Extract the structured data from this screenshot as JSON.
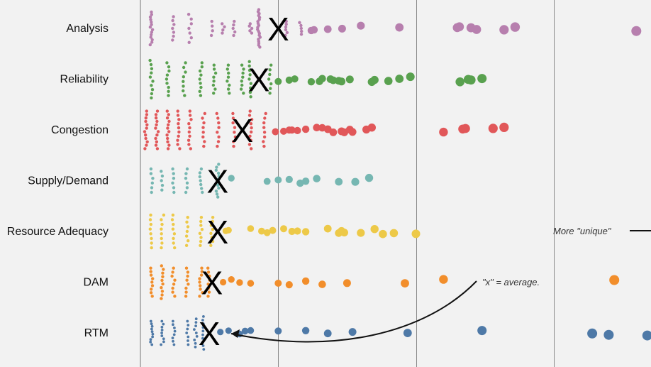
{
  "chart_data": {
    "type": "scatter",
    "style": "strip / beeswarm",
    "categories": [
      "Analysis",
      "Reliability",
      "Congestion",
      "Supply/Demand",
      "Resource Adequacy",
      "DAM",
      "RTM"
    ],
    "colors": {
      "Analysis": "#b77fae",
      "Reliability": "#59a14f",
      "Congestion": "#e15759",
      "Supply/Demand": "#76b7b2",
      "Resource Adequacy": "#edc948",
      "DAM": "#f28e2b",
      "RTM": "#4e79a7"
    },
    "x_axis": {
      "min": 0,
      "max": 1,
      "gridlines": [
        0.25,
        0.5,
        0.75
      ],
      "tick_labels_visible": false
    },
    "average_marker": "X",
    "series": [
      {
        "name": "Analysis",
        "average": 0.25,
        "dense": [
          [
            0.02,
            0.14,
            14
          ],
          [
            0.06,
            0.1,
            7
          ],
          [
            0.09,
            0.12,
            7
          ],
          [
            0.13,
            0.06,
            4
          ],
          [
            0.15,
            0.04,
            4
          ],
          [
            0.17,
            0.06,
            5
          ],
          [
            0.2,
            0.04,
            5
          ],
          [
            0.215,
            0.16,
            20
          ],
          [
            0.265,
            0.06,
            6
          ],
          [
            0.29,
            0.05,
            5
          ]
        ],
        "sparse": [
          [
            0.31,
            1
          ],
          [
            0.315,
            1
          ],
          [
            0.34,
            1
          ],
          [
            0.366,
            1
          ],
          [
            0.4,
            1
          ],
          [
            0.47,
            1
          ],
          [
            0.575,
            1
          ],
          [
            0.579,
            1
          ],
          [
            0.6,
            1
          ],
          [
            0.61,
            1
          ],
          [
            0.66,
            1
          ],
          [
            0.68,
            1
          ],
          [
            0.9,
            1
          ]
        ]
      },
      {
        "name": "Reliability",
        "average": 0.215,
        "dense": [
          [
            0.02,
            0.16,
            10
          ],
          [
            0.05,
            0.14,
            9
          ],
          [
            0.08,
            0.14,
            8
          ],
          [
            0.11,
            0.14,
            9
          ],
          [
            0.135,
            0.12,
            8
          ],
          [
            0.16,
            0.12,
            8
          ],
          [
            0.185,
            0.12,
            8
          ],
          [
            0.2,
            0.15,
            9
          ],
          [
            0.235,
            0.12,
            7
          ]
        ],
        "sparse": [
          [
            0.25,
            1
          ],
          [
            0.27,
            1
          ],
          [
            0.28,
            1
          ],
          [
            0.31,
            1
          ],
          [
            0.325,
            1
          ],
          [
            0.33,
            1
          ],
          [
            0.345,
            1
          ],
          [
            0.35,
            1
          ],
          [
            0.36,
            1
          ],
          [
            0.365,
            1
          ],
          [
            0.38,
            1
          ],
          [
            0.42,
            1
          ],
          [
            0.425,
            1
          ],
          [
            0.45,
            1
          ],
          [
            0.47,
            1
          ],
          [
            0.49,
            1
          ],
          [
            0.58,
            1
          ],
          [
            0.595,
            1
          ],
          [
            0.6,
            1
          ],
          [
            0.62,
            1
          ]
        ]
      },
      {
        "name": "Congestion",
        "average": 0.185,
        "dense": [
          [
            0.01,
            0.16,
            12
          ],
          [
            0.03,
            0.16,
            12
          ],
          [
            0.05,
            0.16,
            12
          ],
          [
            0.07,
            0.16,
            10
          ],
          [
            0.09,
            0.16,
            10
          ],
          [
            0.115,
            0.14,
            8
          ],
          [
            0.14,
            0.14,
            8
          ],
          [
            0.17,
            0.14,
            8
          ],
          [
            0.2,
            0.16,
            10
          ],
          [
            0.225,
            0.14,
            8
          ]
        ],
        "sparse": [
          [
            0.245,
            1
          ],
          [
            0.26,
            1
          ],
          [
            0.27,
            1
          ],
          [
            0.275,
            1
          ],
          [
            0.285,
            1
          ],
          [
            0.3,
            1
          ],
          [
            0.32,
            1
          ],
          [
            0.33,
            1
          ],
          [
            0.34,
            1
          ],
          [
            0.35,
            1
          ],
          [
            0.365,
            1
          ],
          [
            0.37,
            1
          ],
          [
            0.38,
            1
          ],
          [
            0.385,
            1
          ],
          [
            0.41,
            1
          ],
          [
            0.42,
            1
          ],
          [
            0.55,
            1
          ],
          [
            0.585,
            1
          ],
          [
            0.59,
            1
          ],
          [
            0.64,
            1
          ],
          [
            0.66,
            1
          ]
        ]
      },
      {
        "name": "Supply/Demand",
        "average": 0.14,
        "dense": [
          [
            0.02,
            0.1,
            6
          ],
          [
            0.04,
            0.08,
            5
          ],
          [
            0.06,
            0.1,
            6
          ],
          [
            0.085,
            0.1,
            6
          ],
          [
            0.11,
            0.1,
            7
          ],
          [
            0.14,
            0.14,
            12
          ]
        ],
        "sparse": [
          [
            0.165,
            1
          ],
          [
            0.23,
            1
          ],
          [
            0.25,
            1
          ],
          [
            0.27,
            1
          ],
          [
            0.29,
            1
          ],
          [
            0.3,
            1
          ],
          [
            0.32,
            1
          ],
          [
            0.36,
            1
          ],
          [
            0.39,
            1
          ],
          [
            0.415,
            1
          ]
        ]
      },
      {
        "name": "Resource Adequacy",
        "average": 0.14,
        "dense": [
          [
            0.02,
            0.14,
            8
          ],
          [
            0.04,
            0.14,
            8
          ],
          [
            0.06,
            0.14,
            8
          ],
          [
            0.085,
            0.12,
            7
          ],
          [
            0.11,
            0.12,
            8
          ],
          [
            0.13,
            0.12,
            8
          ]
        ],
        "sparse": [
          [
            0.155,
            1
          ],
          [
            0.16,
            1
          ],
          [
            0.2,
            1
          ],
          [
            0.22,
            1
          ],
          [
            0.23,
            1
          ],
          [
            0.24,
            1
          ],
          [
            0.26,
            1
          ],
          [
            0.275,
            1
          ],
          [
            0.285,
            1
          ],
          [
            0.3,
            1
          ],
          [
            0.34,
            1
          ],
          [
            0.36,
            1
          ],
          [
            0.365,
            1
          ],
          [
            0.37,
            1
          ],
          [
            0.4,
            1
          ],
          [
            0.425,
            1
          ],
          [
            0.44,
            1
          ],
          [
            0.46,
            1
          ],
          [
            0.5,
            1
          ]
        ]
      },
      {
        "name": "DAM",
        "average": 0.13,
        "dense": [
          [
            0.02,
            0.12,
            9
          ],
          [
            0.04,
            0.14,
            10
          ],
          [
            0.06,
            0.12,
            8
          ],
          [
            0.085,
            0.12,
            8
          ],
          [
            0.11,
            0.12,
            9
          ],
          [
            0.125,
            0.12,
            8
          ]
        ],
        "sparse": [
          [
            0.15,
            1
          ],
          [
            0.165,
            1
          ],
          [
            0.18,
            1
          ],
          [
            0.2,
            1
          ],
          [
            0.25,
            1
          ],
          [
            0.27,
            1
          ],
          [
            0.3,
            1
          ],
          [
            0.33,
            1
          ],
          [
            0.375,
            1
          ],
          [
            0.48,
            1
          ],
          [
            0.55,
            1
          ],
          [
            0.86,
            1
          ]
        ]
      },
      {
        "name": "RTM",
        "average": 0.125,
        "dense": [
          [
            0.02,
            0.1,
            10
          ],
          [
            0.04,
            0.1,
            9
          ],
          [
            0.06,
            0.1,
            8
          ],
          [
            0.085,
            0.1,
            7
          ],
          [
            0.1,
            0.12,
            9
          ],
          [
            0.115,
            0.14,
            10
          ]
        ],
        "sparse": [
          [
            0.145,
            1
          ],
          [
            0.16,
            1
          ],
          [
            0.18,
            1
          ],
          [
            0.19,
            1
          ],
          [
            0.2,
            1
          ],
          [
            0.25,
            1
          ],
          [
            0.3,
            1
          ],
          [
            0.34,
            1
          ],
          [
            0.385,
            1
          ],
          [
            0.485,
            1
          ],
          [
            0.62,
            1
          ],
          [
            0.82,
            1
          ],
          [
            0.85,
            1
          ],
          [
            0.92,
            1
          ]
        ]
      }
    ],
    "annotations": [
      {
        "text": "\"x\" = average.",
        "points_to": "RTM average"
      },
      {
        "text": "More \"unique\"",
        "arrow": "right"
      }
    ]
  }
}
